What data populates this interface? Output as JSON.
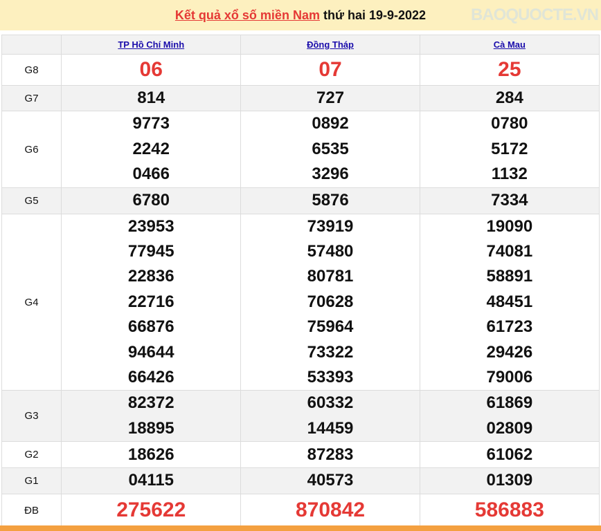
{
  "title": {
    "link": "Kết quả xổ số miền Nam",
    "date": "thứ hai 19-9-2022"
  },
  "provinces": [
    "TP Hồ Chí Minh",
    "Đồng Tháp",
    "Cà Mau"
  ],
  "rows": [
    {
      "label": "G8",
      "values": [
        [
          "06"
        ],
        [
          "07"
        ],
        [
          "25"
        ]
      ],
      "highlight": true
    },
    {
      "label": "G7",
      "values": [
        [
          "814"
        ],
        [
          "727"
        ],
        [
          "284"
        ]
      ]
    },
    {
      "label": "G6",
      "values": [
        [
          "9773",
          "2242",
          "0466"
        ],
        [
          "0892",
          "6535",
          "3296"
        ],
        [
          "0780",
          "5172",
          "1132"
        ]
      ]
    },
    {
      "label": "G5",
      "values": [
        [
          "6780"
        ],
        [
          "5876"
        ],
        [
          "7334"
        ]
      ]
    },
    {
      "label": "G4",
      "values": [
        [
          "23953",
          "77945",
          "22836",
          "22716",
          "66876",
          "94644",
          "66426"
        ],
        [
          "73919",
          "57480",
          "80781",
          "70628",
          "75964",
          "73322",
          "53393"
        ],
        [
          "19090",
          "74081",
          "58891",
          "48451",
          "61723",
          "29426",
          "79006"
        ]
      ]
    },
    {
      "label": "G3",
      "values": [
        [
          "82372",
          "18895"
        ],
        [
          "60332",
          "14459"
        ],
        [
          "61869",
          "02809"
        ]
      ]
    },
    {
      "label": "G2",
      "values": [
        [
          "18626"
        ],
        [
          "87283"
        ],
        [
          "61062"
        ]
      ]
    },
    {
      "label": "G1",
      "values": [
        [
          "04115"
        ],
        [
          "40573"
        ],
        [
          "01309"
        ]
      ]
    },
    {
      "label": "ĐB",
      "values": [
        [
          "275622"
        ],
        [
          "870842"
        ],
        [
          "586883"
        ]
      ],
      "highlight": true
    }
  ],
  "watermark": "BAOQUOCTE.VN",
  "colors": {
    "accent_red": "#e53935",
    "title_bg": "#fdf0bf",
    "footer_bar": "#f4a040",
    "link": "#1a0dab"
  }
}
